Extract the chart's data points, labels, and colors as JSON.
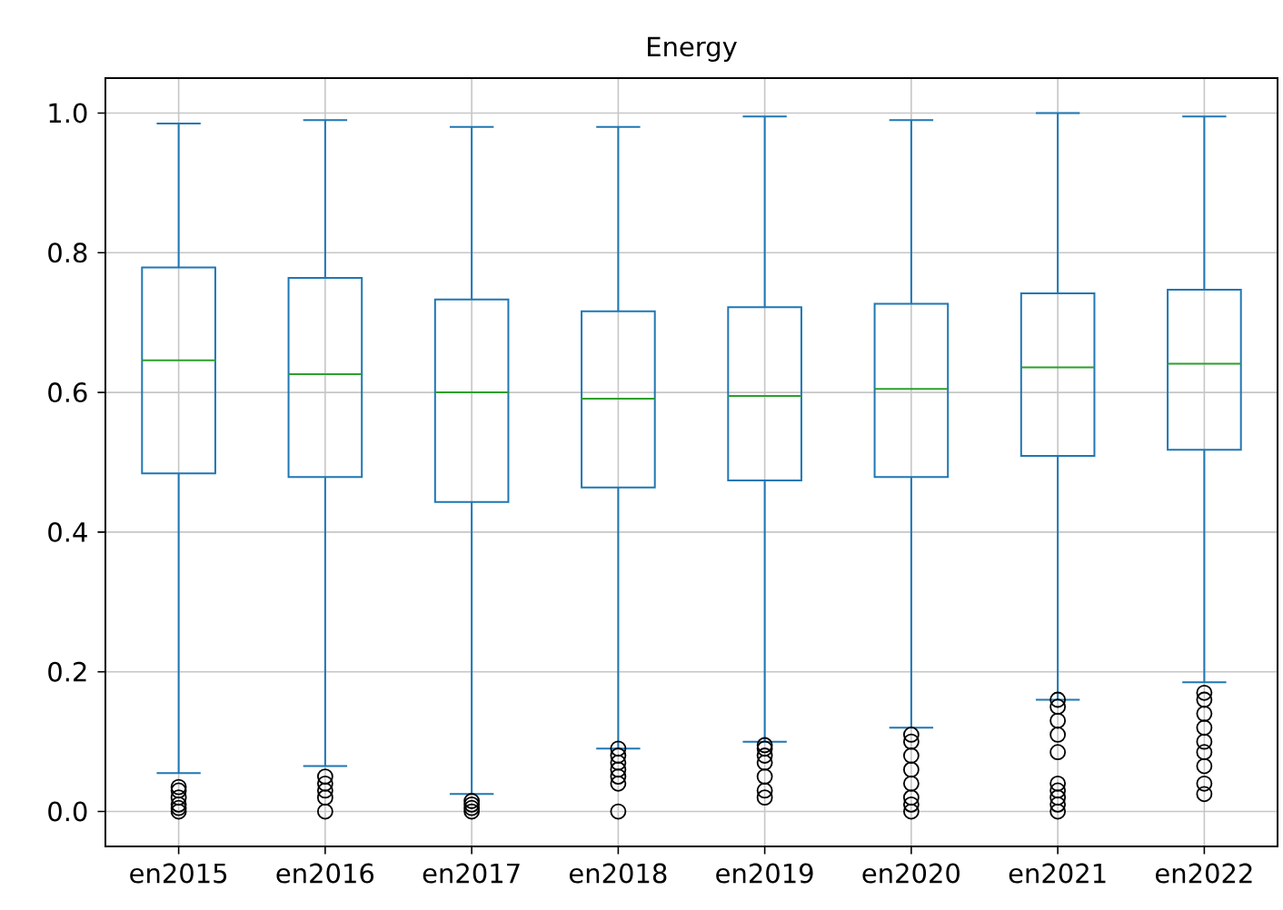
{
  "chart_data": {
    "type": "box",
    "title": "Energy",
    "categories": [
      "en2015",
      "en2016",
      "en2017",
      "en2018",
      "en2019",
      "en2020",
      "en2021",
      "en2022"
    ],
    "color": "#1f77b4",
    "boxes": [
      {
        "low": 0.055,
        "q1": 0.484,
        "median": 0.646,
        "q3": 0.779,
        "high": 0.985,
        "outliers": [
          0,
          0.005,
          0.01,
          0.02,
          0.03,
          0.035
        ]
      },
      {
        "low": 0.065,
        "q1": 0.479,
        "median": 0.626,
        "q3": 0.764,
        "high": 0.99,
        "outliers": [
          0,
          0.02,
          0.03,
          0.04,
          0.05
        ]
      },
      {
        "low": 0.025,
        "q1": 0.443,
        "median": 0.6,
        "q3": 0.733,
        "high": 0.98,
        "outliers": [
          0,
          0.005,
          0.01,
          0.015
        ]
      },
      {
        "low": 0.09,
        "q1": 0.464,
        "median": 0.591,
        "q3": 0.716,
        "high": 0.98,
        "outliers": [
          0,
          0.04,
          0.05,
          0.06,
          0.07,
          0.08,
          0.09
        ]
      },
      {
        "low": 0.1,
        "q1": 0.474,
        "median": 0.595,
        "q3": 0.722,
        "high": 0.995,
        "outliers": [
          0.02,
          0.03,
          0.05,
          0.07,
          0.08,
          0.09,
          0.095
        ]
      },
      {
        "low": 0.12,
        "q1": 0.479,
        "median": 0.605,
        "q3": 0.727,
        "high": 0.99,
        "outliers": [
          0,
          0.01,
          0.02,
          0.04,
          0.06,
          0.08,
          0.1,
          0.11
        ]
      },
      {
        "low": 0.16,
        "q1": 0.509,
        "median": 0.636,
        "q3": 0.742,
        "high": 1.0,
        "outliers": [
          0,
          0.01,
          0.02,
          0.03,
          0.04,
          0.085,
          0.11,
          0.13,
          0.15,
          0.16
        ]
      },
      {
        "low": 0.185,
        "q1": 0.518,
        "median": 0.641,
        "q3": 0.747,
        "high": 0.995,
        "outliers": [
          0.025,
          0.04,
          0.065,
          0.085,
          0.1,
          0.12,
          0.14,
          0.16,
          0.17
        ]
      }
    ],
    "ylim": [
      -0.05,
      1.05
    ],
    "yticks": [
      {
        "value": 0,
        "label": "0.0"
      },
      0.2,
      0.4,
      0.6,
      0.8,
      {
        "value": 1,
        "label": "1.0"
      }
    ],
    "grid": true,
    "marker": "circle"
  }
}
